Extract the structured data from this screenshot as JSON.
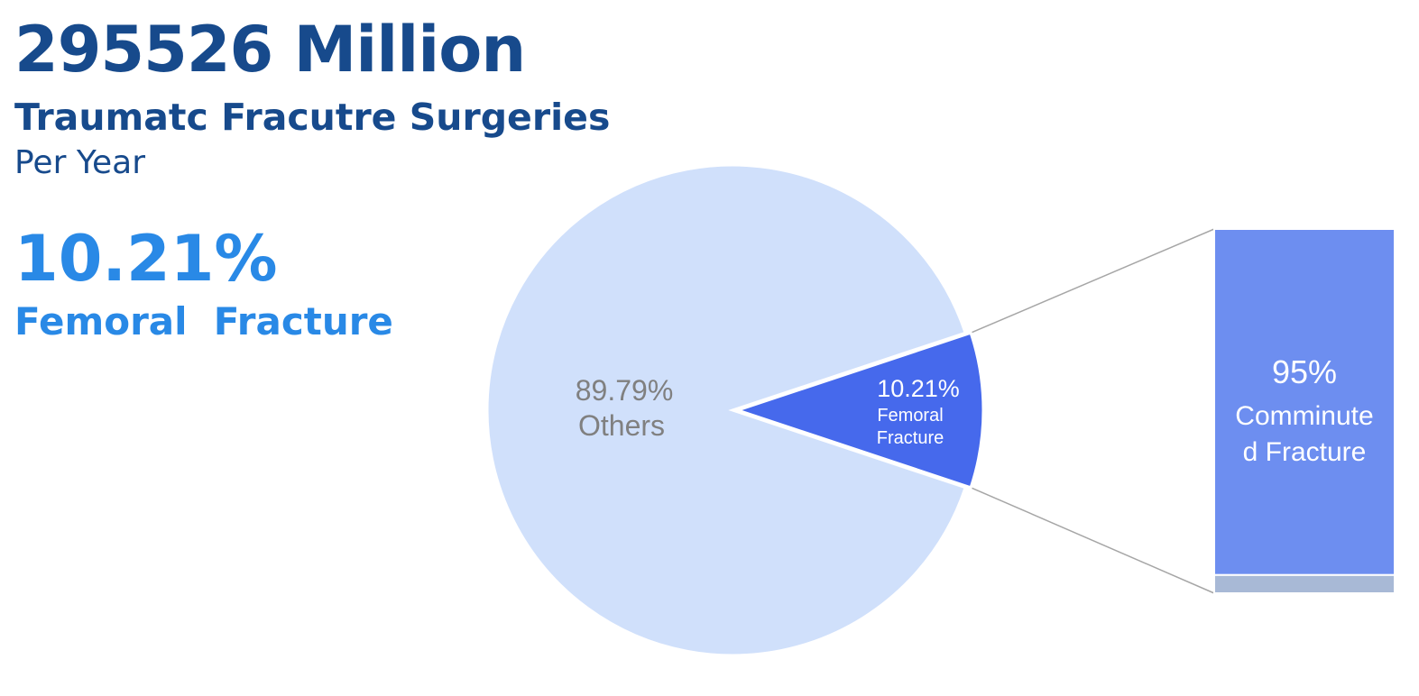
{
  "header": {
    "total": "295526 Million",
    "subtitle": "Traumatc Fracutre Surgeries",
    "period": "Per Year",
    "highlight_pct": "10.21%",
    "highlight_label": "Femoral  Fracture"
  },
  "chart_data": [
    {
      "type": "pie",
      "slices": [
        {
          "label": "Others",
          "value": 89.79,
          "value_label": "89.79%",
          "color": "#d0e0fb"
        },
        {
          "label": "Femoral Fracture",
          "label_lines": [
            "Femoral",
            "Fracture"
          ],
          "value": 10.21,
          "value_label": "10.21%",
          "color": "#4669ec"
        }
      ]
    },
    {
      "type": "bar",
      "stacked": true,
      "segments": [
        {
          "label": "Comminuted Fracture",
          "label_lines": [
            "Comminute",
            "d Fracture"
          ],
          "value": 95,
          "value_label": "95%",
          "color": "#6d8ef0"
        },
        {
          "label": "",
          "value": 5,
          "color": "#a8b9d6"
        }
      ]
    }
  ],
  "colors": {
    "title": "#174a8c",
    "accent": "#2989e6",
    "connector": "#a6a6a6",
    "others_text": "#808080"
  }
}
